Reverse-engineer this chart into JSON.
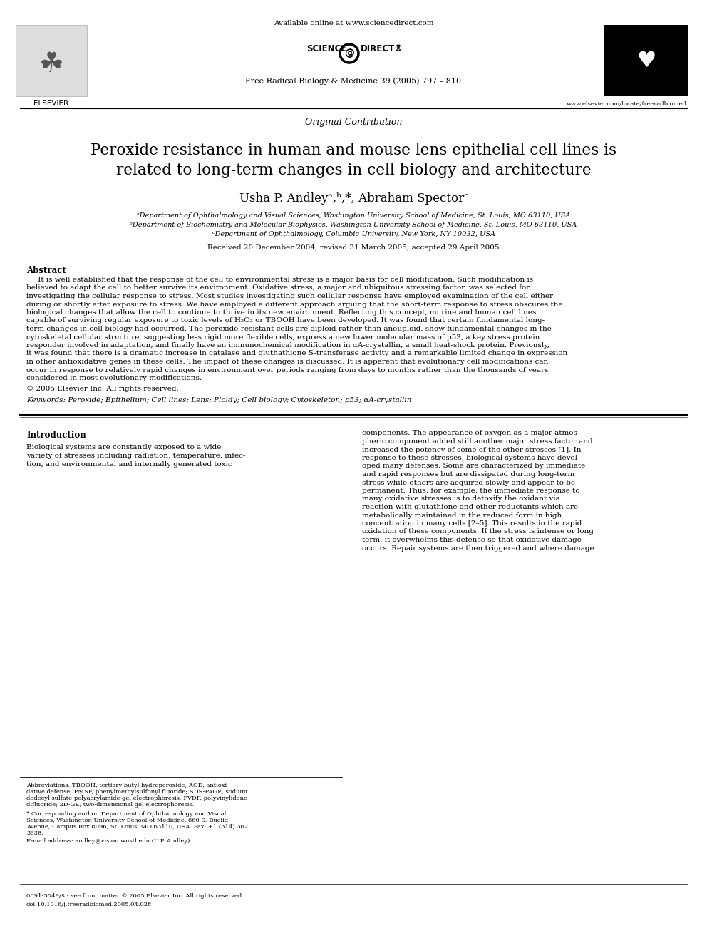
{
  "bg_color": "#ffffff",
  "header_available_text": "Available online at www.sciencedirect.com",
  "journal_text": "Free Radical Biology & Medicine 39 (2005) 797 – 810",
  "elsevier_url": "www.elsevier.com/locate/freeradbiomed",
  "section_label": "Original Contribution",
  "title_line1": "Peroxide resistance in human and mouse lens epithelial cell lines is",
  "title_line2": "related to long-term changes in cell biology and architecture",
  "authors": "Usha P. Andleyᵃ,ᵇ,*, Abraham Spectorᶜ",
  "affil_a": "ᵃDepartment of Ophthalmology and Visual Sciences, Washington University School of Medicine, St. Louis, MO 63110, USA",
  "affil_b": "ᵇDepartment of Biochemistry and Molecular Biophysics, Washington University School of Medicine, St. Louis, MO 63110, USA",
  "affil_c": "ᶜDepartment of Ophthalmology, Columbia University, New York, NY 10032, USA",
  "received_text": "Received 20 December 2004; revised 31 March 2005; accepted 29 April 2005",
  "abstract_label": "Abstract",
  "abstract_text": "It is well established that the response of the cell to environmental stress is a major basis for cell modification. Such modification is believed to adapt the cell to better survive its environment. Oxidative stress, a major and ubiquitous stressing factor, was selected for investigating the cellular response to stress. Most studies investigating such cellular response have employed examination of the cell either during or shortly after exposure to stress. We have employed a different approach arguing that the short-term response to stress obscures the biological changes that allow the cell to continue to thrive in its new environment. Reflecting this concept, murine and human cell lines capable of surviving regular exposure to toxic levels of H₂O₂ or TBOOH have been developed. It was found that certain fundamental long-term changes in cell biology had occurred. The peroxide-resistant cells are diploid rather than aneuploid, show fundamental changes in the cytoskeletal cellular structure, suggesting less rigid more flexible cells, express a new lower molecular mass of p53, a key stress protein responder involved in adaptation, and finally have an immunochemical modification in αA-crystallin, a small heat-shock protein. Previously, it was found that there is a dramatic increase in catalase and gluthathione S-transferase activity and a remarkable limited change in expression in other antioxidative genes in these cells. The impact of these changes is discussed. It is apparent that evolutionary cell modifications can occur in response to relatively rapid changes in environment over periods ranging from days to months rather than the thousands of years considered in most evolutionary modifications.",
  "copyright_text": "© 2005 Elsevier Inc. All rights reserved.",
  "keywords_text": "Keywords: Peroxide; Epithelium; Cell lines; Lens; Ploidy; Cell biology; Cytoskeleton; p53; αA-crystallin",
  "intro_label": "Introduction",
  "intro_col1_lines": [
    "Biological systems are constantly exposed to a wide",
    "variety of stresses including radiation, temperature, infec-",
    "tion, and environmental and internally generated toxic"
  ],
  "intro_col2_lines": [
    "components. The appearance of oxygen as a major atmos-",
    "pheric component added still another major stress factor and",
    "increased the potency of some of the other stresses [1]. In",
    "response to these stresses, biological systems have devel-",
    "oped many defenses. Some are characterized by immediate",
    "and rapid responses but are dissipated during long-term",
    "stress while others are acquired slowly and appear to be",
    "permanent. Thus, for example, the immediate response to",
    "many oxidative stresses is to detoxify the oxidant via",
    "reaction with glutathione and other reductants which are",
    "metabolically maintained in the reduced form in high",
    "concentration in many cells [2–5]. This results in the rapid",
    "oxidation of these components. If the stress is intense or long",
    "term, it overwhelms this defense so that oxidative damage",
    "occurs. Repair systems are then triggered and where damage"
  ],
  "footnote_abbrev_lines": [
    "Abbreviations: TBOOH, tertiary butyl hydroperoxide; AOD, antioxi-",
    "dative defense; PMSF, phenylmethylsulfonyl fluoride; SDS-PAGE, sodium",
    "dodecyl sulfate-polyacrylamide gel electrophoresis; PVDF, polyvinylidene",
    "difluoride; 2D-GE, two-dimensional gel electrophoresis."
  ],
  "footnote_corresponding_lines": [
    "* Corresponding author. Department of Ophthalmology and Visual",
    "Sciences, Washington University School of Medicine, 660 S. Buclid",
    "Avenue, Campus Box 8096, St. Louis, MO 63110, USA. Fax: +1 (314) 362",
    "3638."
  ],
  "footnote_email": "E-mail address: andley@vision.wustl.edu (U.P. Andley).",
  "footnote_issn": "0891-5849/$ - see front matter © 2005 Elsevier Inc. All rights reserved.",
  "footnote_doi": "doi:10.1016/j.freeradbiomed.2005.04.028",
  "abstract_lines": [
    "     It is well established that the response of the cell to environmental stress is a major basis for cell modification. Such modification is",
    "believed to adapt the cell to better survive its environment. Oxidative stress, a major and ubiquitous stressing factor, was selected for",
    "investigating the cellular response to stress. Most studies investigating such cellular response have employed examination of the cell either",
    "during or shortly after exposure to stress. We have employed a different approach arguing that the short-term response to stress obscures the",
    "biological changes that allow the cell to continue to thrive in its new environment. Reflecting this concept, murine and human cell lines",
    "capable of surviving regular exposure to toxic levels of H₂O₂ or TBOOH have been developed. It was found that certain fundamental long-",
    "term changes in cell biology had occurred. The peroxide-resistant cells are diploid rather than aneuploid, show fundamental changes in the",
    "cytoskeletal cellular structure, suggesting less rigid more flexible cells, express a new lower molecular mass of p53, a key stress protein",
    "responder involved in adaptation, and finally have an immunochemical modification in αA-crystallin, a small heat-shock protein. Previously,",
    "it was found that there is a dramatic increase in catalase and gluthathione S-transferase activity and a remarkable limited change in expression",
    "in other antioxidative genes in these cells. The impact of these changes is discussed. It is apparent that evolutionary cell modifications can",
    "occur in response to relatively rapid changes in environment over periods ranging from days to months rather than the thousands of years",
    "considered in most evolutionary modifications."
  ]
}
